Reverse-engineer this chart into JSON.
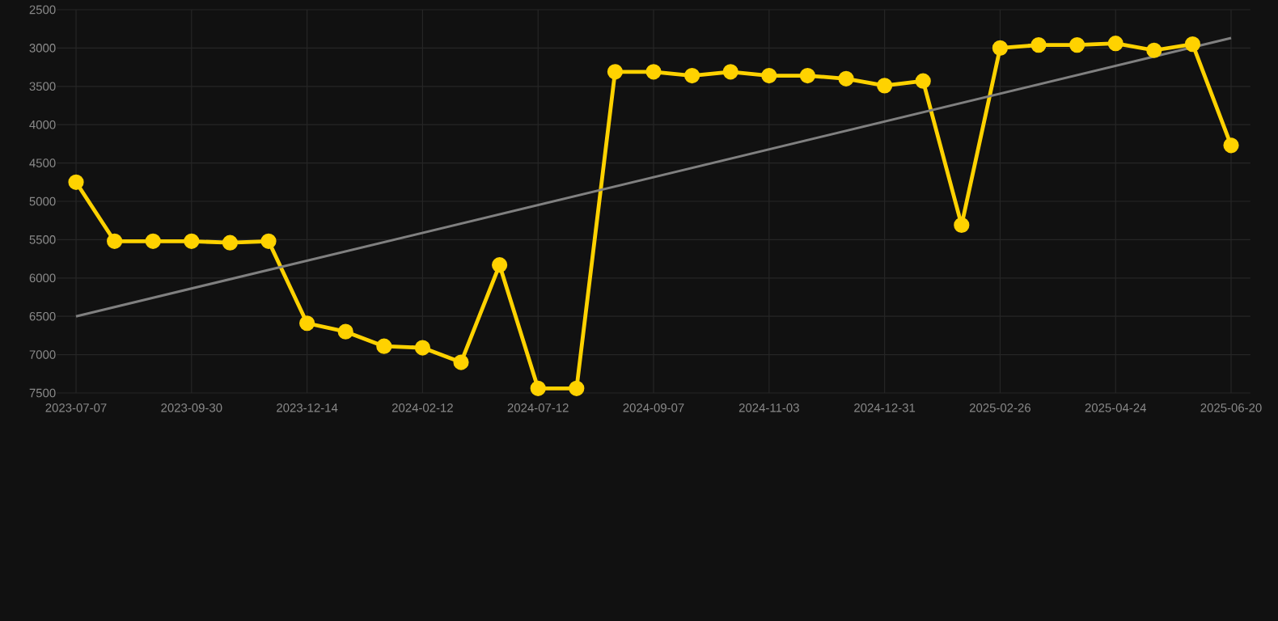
{
  "chart_data": {
    "type": "line",
    "categories": [
      "2023-07-07",
      null,
      null,
      "2023-09-30",
      null,
      null,
      "2023-12-14",
      null,
      null,
      "2024-02-12",
      null,
      null,
      "2024-07-12",
      null,
      null,
      "2024-09-07",
      null,
      null,
      "2024-11-03",
      null,
      null,
      "2024-12-31",
      null,
      null,
      "2025-02-26",
      null,
      null,
      "2025-04-24",
      null,
      null,
      "2025-06-20"
    ],
    "series": [
      {
        "color": "#ffd200",
        "marker": "circle",
        "values": [
          4750,
          5520,
          5520,
          5520,
          5540,
          5520,
          6590,
          6700,
          6890,
          6910,
          7100,
          5830,
          7440,
          7440,
          3310,
          3310,
          3360,
          3310,
          3360,
          3360,
          3400,
          3490,
          3430,
          5310,
          3000,
          2960,
          2960,
          2940,
          3030,
          2950,
          4270
        ]
      },
      {
        "color": "#808080",
        "marker": "none",
        "values": [
          6500,
          null,
          null,
          null,
          null,
          null,
          null,
          null,
          null,
          null,
          null,
          null,
          null,
          null,
          null,
          null,
          null,
          null,
          null,
          null,
          null,
          null,
          null,
          null,
          null,
          null,
          null,
          null,
          null,
          null,
          2870
        ]
      }
    ],
    "ylim": [
      7500,
      2500
    ],
    "yticks": [
      2500,
      3000,
      3500,
      4000,
      4500,
      5000,
      5500,
      6000,
      6500,
      7000,
      7500
    ],
    "grid": true
  }
}
